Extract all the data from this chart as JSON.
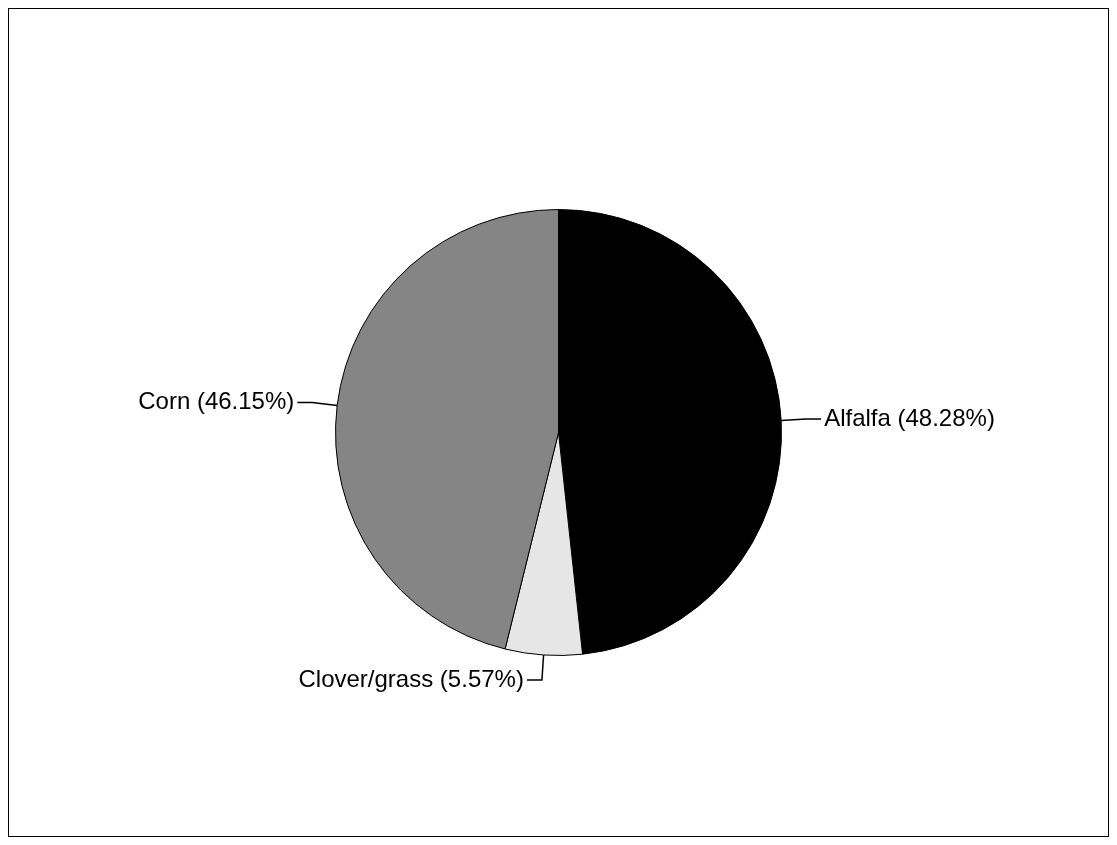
{
  "chart_data": {
    "type": "pie",
    "categories": [
      "Alfalfa",
      "Clover/grass",
      "Corn"
    ],
    "values": [
      48.28,
      5.57,
      46.15
    ],
    "colors": [
      "#000000",
      "#e6e6e6",
      "#858585"
    ],
    "value_labels": [
      "(48.28%)",
      "(5.57%)",
      "(46.15%)"
    ],
    "legend": false
  }
}
